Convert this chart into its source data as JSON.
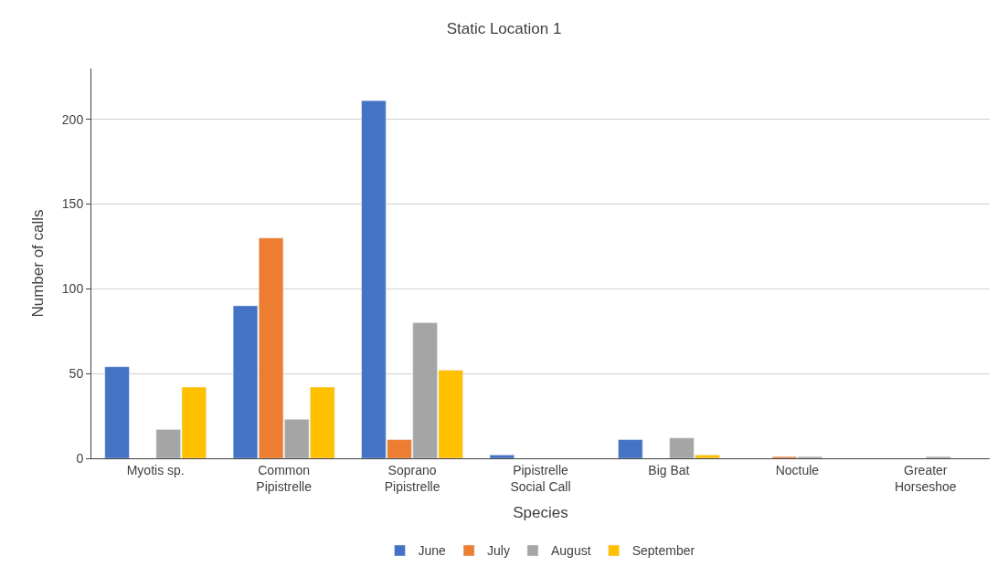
{
  "chart_data": {
    "type": "bar",
    "title": "Static Location 1",
    "xlabel": "Species",
    "ylabel": "Number of calls",
    "categories": [
      "Myotis sp.",
      "Common\nPipistrelle",
      "Soprano\nPipistrelle",
      "Pipistrelle\nSocial Call",
      "Big Bat",
      "Noctule",
      "Greater\nHorseshoe"
    ],
    "series": [
      {
        "name": "June",
        "color": "#4472c4",
        "values": [
          54,
          90,
          211,
          2,
          11,
          null,
          null
        ]
      },
      {
        "name": "July",
        "color": "#ed7d31",
        "values": [
          null,
          130,
          11,
          null,
          null,
          1,
          null
        ]
      },
      {
        "name": "August",
        "color": "#a5a5a5",
        "values": [
          17,
          23,
          80,
          null,
          12,
          1,
          1
        ]
      },
      {
        "name": "September",
        "color": "#ffc000",
        "values": [
          42,
          42,
          52,
          null,
          2,
          null,
          null
        ]
      }
    ],
    "ylim": [
      0,
      230
    ],
    "yticks": [
      0,
      50,
      100,
      150,
      200
    ],
    "grid": "y",
    "legend": "bottom"
  }
}
